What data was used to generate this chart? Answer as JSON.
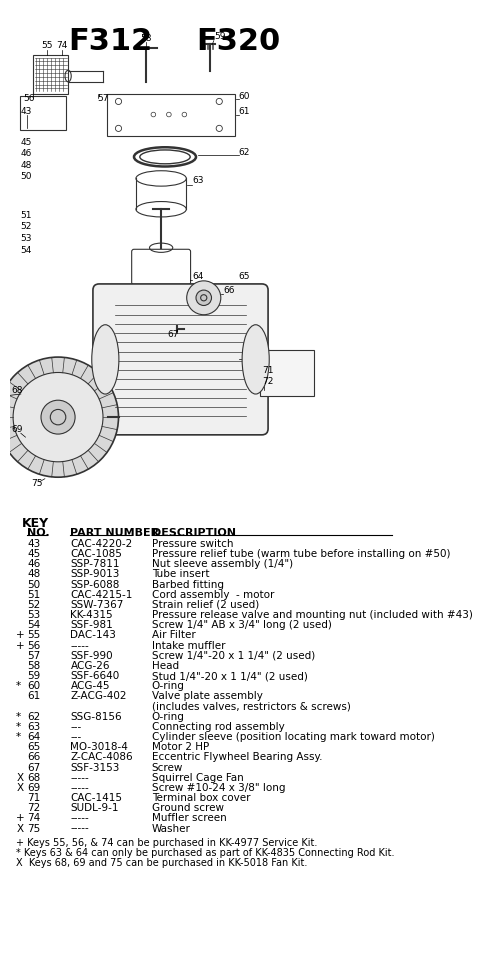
{
  "title_left": "F312",
  "title_right": "F320",
  "bg_color": "#ffffff",
  "key_header": "KEY",
  "col_headers": [
    "NO.",
    "PART NUMBER",
    "DESCRIPTION"
  ],
  "parts": [
    {
      "prefix": " ",
      "no": "43",
      "part": "CAC-4220-2",
      "desc": "Pressure switch"
    },
    {
      "prefix": " ",
      "no": "45",
      "part": "CAC-1085",
      "desc": "Pressure relief tube (warm tube before installing on #50)"
    },
    {
      "prefix": " ",
      "no": "46",
      "part": "SSP-7811",
      "desc": "Nut sleeve assembly (1/4\")"
    },
    {
      "prefix": " ",
      "no": "48",
      "part": "SSP-9013",
      "desc": "Tube insert"
    },
    {
      "prefix": " ",
      "no": "50",
      "part": "SSP-6088",
      "desc": "Barbed fitting"
    },
    {
      "prefix": " ",
      "no": "51",
      "part": "CAC-4215-1",
      "desc": "Cord assembly  - motor"
    },
    {
      "prefix": " ",
      "no": "52",
      "part": "SSW-7367",
      "desc": "Strain relief (2 used)"
    },
    {
      "prefix": " ",
      "no": "53",
      "part": "KK-4315",
      "desc": "Pressure release valve and mounting nut (included with #43)"
    },
    {
      "prefix": " ",
      "no": "54",
      "part": "SSF-981",
      "desc": "Screw 1/4\" AB x 3/4\" long (2 used)"
    },
    {
      "prefix": "+",
      "no": "55",
      "part": "DAC-143",
      "desc": "Air Filter"
    },
    {
      "prefix": "+",
      "no": "56",
      "part": "-----",
      "desc": "Intake muffler"
    },
    {
      "prefix": " ",
      "no": "57",
      "part": "SSF-990",
      "desc": "Screw 1/4\"-20 x 1 1/4\" (2 used)"
    },
    {
      "prefix": " ",
      "no": "58",
      "part": "ACG-26",
      "desc": "Head"
    },
    {
      "prefix": " ",
      "no": "59",
      "part": "SSF-6640",
      "desc": "Stud 1/4\"-20 x 1 1/4\" (2 used)"
    },
    {
      "prefix": "*",
      "no": "60",
      "part": "ACG-45",
      "desc": "O-ring"
    },
    {
      "prefix": " ",
      "no": "61",
      "part": "Z-ACG-402",
      "desc": "Valve plate assembly\n(includes valves, restrictors & screws)"
    },
    {
      "prefix": "*",
      "no": "62",
      "part": "SSG-8156",
      "desc": "O-ring"
    },
    {
      "prefix": "*",
      "no": "63",
      "part": "---",
      "desc": "Connecting rod assembly"
    },
    {
      "prefix": "*",
      "no": "64",
      "part": "---",
      "desc": "Cylinder sleeve (position locating mark toward motor)"
    },
    {
      "prefix": " ",
      "no": "65",
      "part": "MO-3018-4",
      "desc": "Motor 2 HP"
    },
    {
      "prefix": " ",
      "no": "66",
      "part": "Z-CAC-4086",
      "desc": "Eccentric Flywheel Bearing Assy."
    },
    {
      "prefix": " ",
      "no": "67",
      "part": "SSF-3153",
      "desc": "Screw"
    },
    {
      "prefix": "X",
      "no": "68",
      "part": "-----",
      "desc": "Squirrel Cage Fan"
    },
    {
      "prefix": "X",
      "no": "69",
      "part": "-----",
      "desc": "Screw #10-24 x 3/8\" long"
    },
    {
      "prefix": " ",
      "no": "71",
      "part": "CAC-1415",
      "desc": "Terminal box cover"
    },
    {
      "prefix": " ",
      "no": "72",
      "part": "SUDL-9-1",
      "desc": "Ground screw"
    },
    {
      "prefix": "+",
      "no": "74",
      "part": "-----",
      "desc": "Muffler screen"
    },
    {
      "prefix": "X",
      "no": "75",
      "part": "-----",
      "desc": "Washer"
    }
  ],
  "footnotes": [
    "+ Keys 55, 56, & 74 can be purchased in KK-4977 Service Kit.",
    "* Keys 63 & 64 can only be purchased as part of KK-4835 Connecting Rod Kit.",
    "X  Keys 68, 69 and 75 can be purchased in KK-5018 Fan Kit."
  ]
}
